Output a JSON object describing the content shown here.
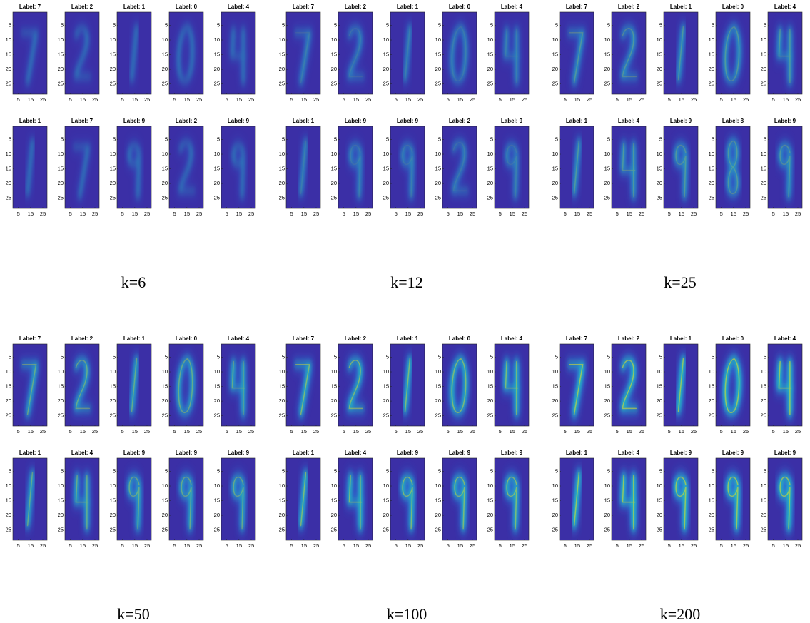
{
  "axes": {
    "yticks": [
      5,
      10,
      15,
      20,
      25
    ],
    "xticks": [
      5,
      15,
      25
    ]
  },
  "panels": [
    {
      "caption": "k=6",
      "subplots": [
        [
          "Label: 7",
          "Label: 2",
          "Label: 1",
          "Label: 0",
          "Label: 4"
        ],
        [
          "Label: 1",
          "Label: 7",
          "Label: 9",
          "Label: 2",
          "Label: 9"
        ]
      ]
    },
    {
      "caption": "k=12",
      "subplots": [
        [
          "Label: 7",
          "Label: 2",
          "Label: 1",
          "Label: 0",
          "Label: 4"
        ],
        [
          "Label: 1",
          "Label: 9",
          "Label: 9",
          "Label: 2",
          "Label: 9"
        ]
      ]
    },
    {
      "caption": "k=25",
      "subplots": [
        [
          "Label: 7",
          "Label: 2",
          "Label: 1",
          "Label: 0",
          "Label: 4"
        ],
        [
          "Label: 1",
          "Label: 4",
          "Label: 9",
          "Label: 8",
          "Label: 9"
        ]
      ]
    },
    {
      "caption": "k=50",
      "subplots": [
        [
          "Label: 7",
          "Label: 2",
          "Label: 1",
          "Label: 0",
          "Label: 4"
        ],
        [
          "Label: 1",
          "Label: 4",
          "Label: 9",
          "Label: 9",
          "Label: 9"
        ]
      ]
    },
    {
      "caption": "k=100",
      "subplots": [
        [
          "Label: 7",
          "Label: 2",
          "Label: 1",
          "Label: 0",
          "Label: 4"
        ],
        [
          "Label: 1",
          "Label: 4",
          "Label: 9",
          "Label: 9",
          "Label: 9"
        ]
      ]
    },
    {
      "caption": "k=200",
      "subplots": [
        [
          "Label: 7",
          "Label: 2",
          "Label: 1",
          "Label: 0",
          "Label: 4"
        ],
        [
          "Label: 1",
          "Label: 4",
          "Label: 9",
          "Label: 9",
          "Label: 9"
        ]
      ]
    }
  ]
}
